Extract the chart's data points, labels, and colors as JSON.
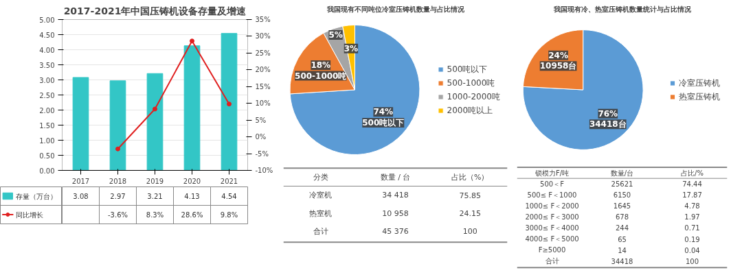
{
  "chart_data": [
    {
      "type": "bar",
      "title": "2017-2021年中国压铸机设备存量及增速",
      "categories": [
        "2017",
        "2018",
        "2019",
        "2020",
        "2021"
      ],
      "series": [
        {
          "name": "存量（万台）",
          "type": "bar",
          "color": "#33c6c6",
          "values": [
            3.08,
            2.97,
            3.21,
            4.13,
            4.54
          ],
          "value_labels": [
            "3.08",
            "2.97",
            "3.21",
            "4.13",
            "4.54"
          ]
        },
        {
          "name": "同比增长",
          "type": "line",
          "axis": "y2",
          "color": "#e02020",
          "values": [
            null,
            -3.6,
            8.3,
            28.6,
            9.8
          ],
          "value_labels": [
            null,
            "-3.6%",
            "8.3%",
            "28.6%",
            "9.8%"
          ]
        }
      ],
      "ylim": [
        0,
        5
      ],
      "yticks": [
        {
          "value": 0,
          "label": "0.00"
        },
        {
          "value": 0.5,
          "label": "0.50"
        },
        {
          "value": 1,
          "label": "1.00"
        },
        {
          "value": 1.5,
          "label": "1.50"
        },
        {
          "value": 2,
          "label": "2.00"
        },
        {
          "value": 2.5,
          "label": "2.50"
        },
        {
          "value": 3,
          "label": "3.00"
        },
        {
          "value": 3.5,
          "label": "3.50"
        },
        {
          "value": 4,
          "label": "4.00"
        },
        {
          "value": 4.5,
          "label": "4.50"
        },
        {
          "value": 5,
          "label": "5.00"
        }
      ],
      "y2lim": [
        -10,
        35
      ],
      "y2ticks": [
        {
          "value": -10,
          "label": "-10%"
        },
        {
          "value": -5,
          "label": "-5%"
        },
        {
          "value": 0,
          "label": "0%"
        },
        {
          "value": 5,
          "label": "5%"
        },
        {
          "value": 10,
          "label": "10%"
        },
        {
          "value": 15,
          "label": "15%"
        },
        {
          "value": 20,
          "label": "20%"
        },
        {
          "value": 25,
          "label": "25%"
        },
        {
          "value": 30,
          "label": "30%"
        },
        {
          "value": 35,
          "label": "35%"
        }
      ],
      "grid": "y",
      "legend": "bottom",
      "marker": "circle",
      "line_style": "solid"
    },
    {
      "type": "pie",
      "title": "我国现有不同吨位冷室压铸机数量与占比情况",
      "categories": [
        "500吨以下",
        "500-1000吨",
        "1000-2000吨",
        "2000吨以上"
      ],
      "values": [
        74,
        18,
        5,
        3
      ],
      "colors": [
        "#5b9bd5",
        "#ed7d31",
        "#a5a5a5",
        "#ffc000"
      ],
      "value_labels": [
        "74%\n500吨以下",
        "18%\n500-1000吨",
        "5%",
        "3%"
      ],
      "legend": "right"
    },
    {
      "type": "pie",
      "title": "我国现有冷、热室压铸机数量统计与占比情况",
      "categories": [
        "冷室压铸机",
        "热室压铸机"
      ],
      "values": [
        34418,
        10958
      ],
      "colors": [
        "#5b9bd5",
        "#ed7d31"
      ],
      "value_labels": [
        "76%\n34418台",
        "24%\n10958台"
      ],
      "legend": "right"
    },
    {
      "type": "other",
      "annotations": [
        "分类",
        "数量 / 台",
        "占比（%）",
        "冷室机",
        "34 418",
        "75.85",
        "热室机",
        "10 958",
        "24.15",
        "合计",
        "45 376",
        "100"
      ]
    },
    {
      "type": "other",
      "annotations": [
        "锁模力F/吨",
        "数量/台",
        "占比/%",
        "500＜F",
        "25621",
        "74.44",
        "500≤ F＜1000",
        "6150",
        "17.87",
        "1000≤ F＜2000",
        "1645",
        "4.78",
        "2000≤ F＜3000",
        "678",
        "1.97",
        "3000≤ F＜4000",
        "244",
        "0.71",
        "4000≤ F＜5000",
        "65",
        "0.19",
        "F≥5000",
        "14",
        "0.04",
        "合计",
        "34418",
        "100"
      ]
    }
  ]
}
